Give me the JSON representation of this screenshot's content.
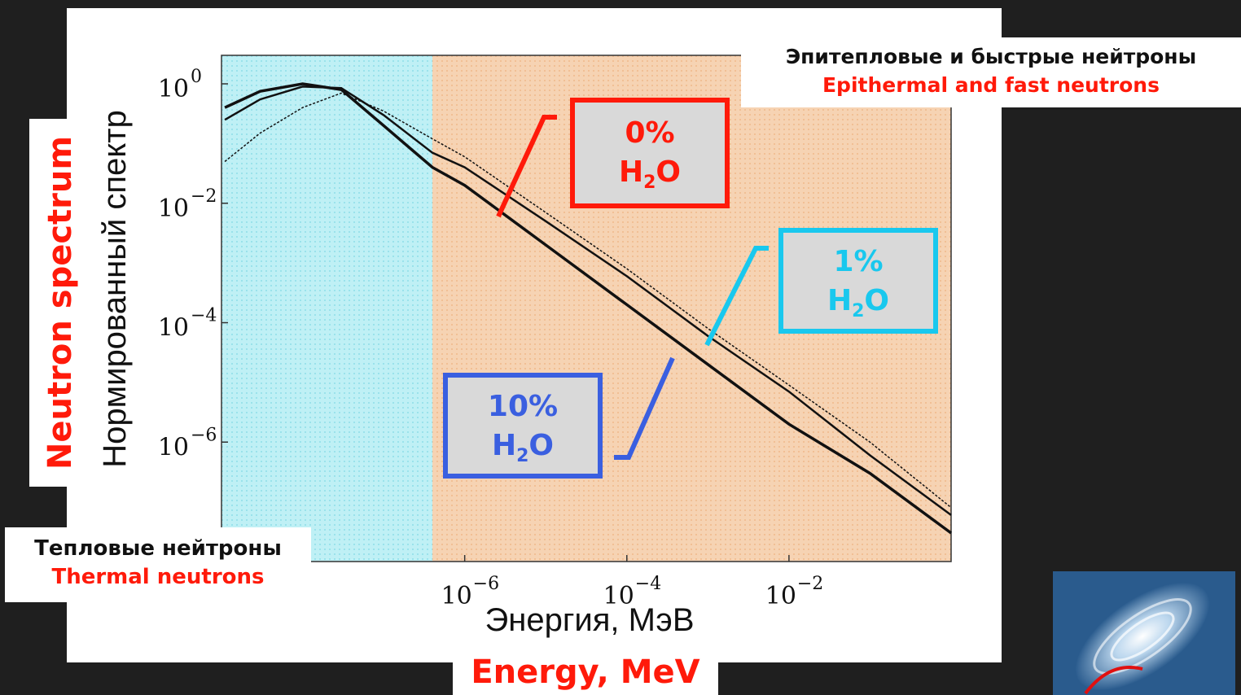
{
  "chart_data": {
    "type": "line",
    "title": "",
    "xlabel_ru": "Энергия, МэВ",
    "xlabel_en": "Energy, MeV",
    "ylabel_ru": "Нормированный спектр",
    "ylabel_en": "Neutron spectrum",
    "x_scale": "log",
    "y_scale": "log",
    "xlim": [
      1e-09,
      1
    ],
    "ylim": [
      1e-08,
      3
    ],
    "x_ticks": [
      1e-06,
      0.0001,
      0.01
    ],
    "x_tick_labels": [
      "10",
      "10",
      "10"
    ],
    "x_tick_exps": [
      "−6",
      "−4",
      "−2"
    ],
    "y_ticks": [
      1,
      0.01,
      0.0001,
      1e-06
    ],
    "y_tick_labels": [
      "10",
      "10",
      "10",
      "10"
    ],
    "y_tick_exps": [
      "0",
      "−2",
      "−4",
      "−6"
    ],
    "regions": [
      {
        "name_ru": "Тепловые нейтроны",
        "name_en": "Thermal neutrons",
        "x_range": [
          1e-09,
          4e-07
        ],
        "color": "#bff0f5"
      },
      {
        "name_ru": "Эпитепловые и быстрые нейтроны",
        "name_en": "Epithermal and fast neutrons",
        "x_range": [
          4e-07,
          1
        ],
        "color": "#f6d3b3"
      }
    ],
    "series": [
      {
        "name": "0% H2O",
        "color": "#ff2a1a",
        "x": [
          1.1e-09,
          3e-09,
          1e-08,
          3e-08,
          1e-07,
          4e-07,
          1e-06,
          1e-05,
          0.0001,
          0.001,
          0.01,
          0.1,
          1
        ],
        "y": [
          0.05,
          0.15,
          0.4,
          0.7,
          0.35,
          0.12,
          0.06,
          0.007,
          0.0008,
          8e-05,
          9e-06,
          1e-06,
          8e-08
        ]
      },
      {
        "name": "1% H2O",
        "color": "#1ec8ea",
        "x": [
          1.1e-09,
          3e-09,
          1e-08,
          3e-08,
          1e-07,
          4e-07,
          1e-06,
          1e-05,
          0.0001,
          0.001,
          0.01,
          0.1,
          1
        ],
        "y": [
          0.25,
          0.55,
          0.9,
          0.85,
          0.3,
          0.07,
          0.04,
          0.005,
          0.0006,
          6e-05,
          7e-06,
          6e-07,
          6e-08
        ]
      },
      {
        "name": "10% H2O",
        "color": "#3a5fe0",
        "x": [
          1.1e-09,
          3e-09,
          1e-08,
          3e-08,
          1e-07,
          4e-07,
          1e-06,
          1e-05,
          0.0001,
          0.001,
          0.01,
          0.1,
          1
        ],
        "y": [
          0.4,
          0.75,
          1.0,
          0.8,
          0.2,
          0.04,
          0.02,
          0.002,
          0.0002,
          2e-05,
          2e-06,
          3e-07,
          3e-08
        ]
      }
    ]
  },
  "labels": {
    "thermal_ru": "Тепловые нейтроны",
    "thermal_en": "Thermal neutrons",
    "epi_ru": "Эпитепловые и быстрые нейтроны",
    "epi_en": "Epithermal and fast neutrons",
    "y_en": "Neutron spectrum",
    "x_en": "Energy, MeV"
  },
  "callouts": [
    {
      "pct": "0%",
      "formula_main": "H",
      "formula_sub": "2",
      "formula_end": "O",
      "color": "#ff1a0a"
    },
    {
      "pct": "1%",
      "formula_main": "H",
      "formula_sub": "2",
      "formula_end": "O",
      "color": "#19c8ee"
    },
    {
      "pct": "10%",
      "formula_main": "H",
      "formula_sub": "2",
      "formula_end": "O",
      "color": "#3a5fe0"
    }
  ]
}
